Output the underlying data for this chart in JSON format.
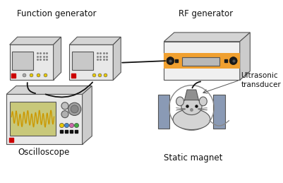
{
  "bg_color": "#ffffff",
  "labels": {
    "function_generator": "Function generator",
    "rf_generator": "RF generator",
    "oscilloscope": "Oscilloscope",
    "ultrasonic_transducer": "Ultrasonic\ntransducer",
    "static_magnet": "Static magnet"
  },
  "colors": {
    "device_body": "#e8e8e8",
    "device_body_dark": "#cccccc",
    "device_top": "#d4d4d4",
    "device_screen": "#c8c8c8",
    "rf_orange": "#f0a030",
    "rf_screen": "#b8b8b8",
    "osc_screen_bg": "#c8c87a",
    "wave_color": "#cc9900",
    "magnet_color": "#8a9ab5",
    "transducer_color": "#909090",
    "cable_color": "#111111",
    "red_led": "#cc0000",
    "yellow_dot": "#e8c800",
    "blue_dot": "#4488cc",
    "pink_dot": "#cc66aa",
    "green_dot": "#44aa44",
    "outline": "#555555"
  }
}
